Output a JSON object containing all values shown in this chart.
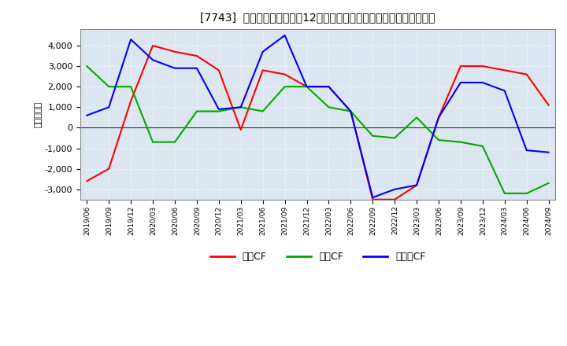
{
  "title": "[7743]  キャッシュフローの12か月移動合計の対前年同期増減額の推移",
  "ylabel": "（百万円）",
  "background_color": "#ffffff",
  "plot_bg_color": "#dce6f0",
  "grid_color": "#ffffff",
  "x_labels": [
    "2019/06",
    "2019/09",
    "2019/12",
    "2020/03",
    "2020/06",
    "2020/09",
    "2020/12",
    "2021/03",
    "2021/06",
    "2021/09",
    "2021/12",
    "2022/03",
    "2022/06",
    "2022/09",
    "2022/12",
    "2023/03",
    "2023/06",
    "2023/09",
    "2023/12",
    "2024/03",
    "2024/06",
    "2024/09"
  ],
  "operating_cf": [
    -2600,
    -2000,
    1300,
    4000,
    3700,
    3500,
    2800,
    -100,
    2800,
    2600,
    2000,
    2000,
    800,
    -3500,
    -3500,
    -2800,
    500,
    3000,
    3000,
    2800,
    2600,
    1100
  ],
  "investing_cf": [
    3000,
    2000,
    2000,
    -700,
    -700,
    800,
    800,
    1000,
    800,
    2000,
    2000,
    1000,
    800,
    -400,
    -500,
    500,
    -600,
    -700,
    -900,
    -3200,
    -3200,
    -2700
  ],
  "free_cf": [
    600,
    1000,
    4300,
    3300,
    2900,
    2900,
    900,
    1000,
    3700,
    4500,
    2000,
    2000,
    800,
    -3400,
    -3000,
    -2800,
    500,
    2200,
    2200,
    1800,
    -1100,
    -1200
  ],
  "operating_color": "#ff0000",
  "investing_color": "#00aa00",
  "free_color": "#0000ff",
  "ylim": [
    -3500,
    4800
  ],
  "yticks": [
    -3000,
    -2000,
    -1000,
    0,
    1000,
    2000,
    3000,
    4000
  ],
  "legend_labels": [
    "営業CF",
    "投資CF",
    "フリーCF"
  ]
}
